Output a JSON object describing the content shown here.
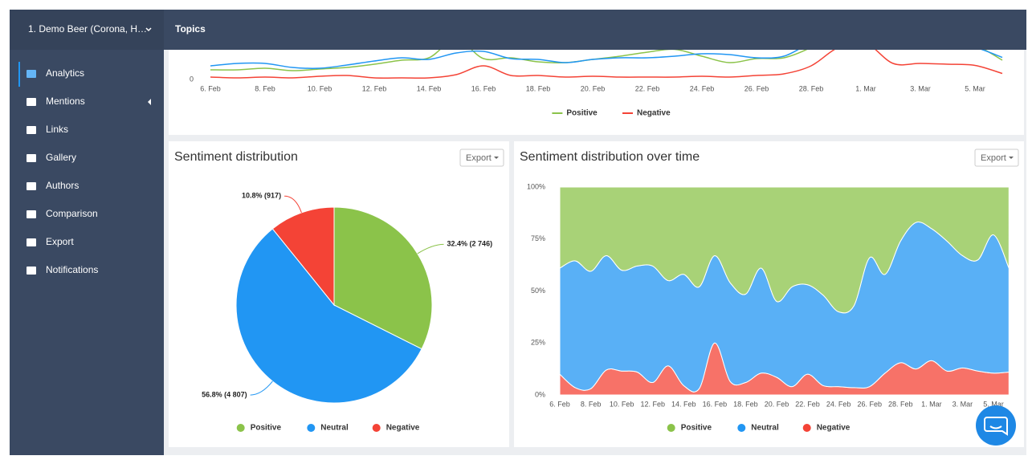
{
  "sidebar": {
    "project": "1. Demo Beer (Corona, H…",
    "menu": [
      "Analytics",
      "Mentions",
      "Links",
      "Gallery",
      "Authors",
      "Comparison",
      "Export",
      "Notifications"
    ]
  },
  "header": {
    "title": "Topics"
  },
  "chart_data": [
    {
      "type": "line",
      "categories": [
        "6. Feb",
        null,
        "8. Feb",
        null,
        "10. Feb",
        null,
        "12. Feb",
        null,
        "14. Feb",
        null,
        "16. Feb",
        null,
        "18. Feb",
        null,
        "20. Feb",
        null,
        "22. Feb",
        null,
        "24. Feb",
        null,
        "26. Feb",
        null,
        "28. Feb",
        null,
        "1. Mar",
        null,
        "3. Mar",
        null,
        "5. Mar",
        null
      ],
      "series": [
        {
          "name": "Positive",
          "color": "#8bc34a",
          "values": [
            4.8,
            4.8,
            5.6,
            4.4,
            5.2,
            6,
            7.6,
            9.6,
            10.8,
            20,
            10.4,
            10.8,
            8.8,
            8.4,
            10,
            11.6,
            13.6,
            15,
            11.6,
            8.4,
            10.4,
            10.8,
            16,
            24,
            26,
            22,
            20,
            18,
            17,
            9.6
          ]
        },
        {
          "name": null,
          "color": "#2196f3",
          "values": [
            6.8,
            8,
            8,
            6,
            5.6,
            7.2,
            9.2,
            10.8,
            10,
            13.2,
            14,
            10.4,
            10,
            8.4,
            10,
            10.8,
            10.8,
            11.6,
            12.8,
            12.4,
            10.8,
            11.6,
            18,
            20,
            22,
            20,
            19,
            18,
            16,
            11
          ]
        },
        {
          "name": "Negative",
          "color": "#f44336",
          "values": [
            1.2,
            0.8,
            1.2,
            0.8,
            1.6,
            2,
            0.8,
            0.8,
            0.8,
            2.4,
            6.8,
            2,
            2,
            1.2,
            1.6,
            1.2,
            1.2,
            1.2,
            1.6,
            1.2,
            2,
            2.8,
            6.8,
            16,
            18,
            8,
            8,
            7.6,
            7,
            3
          ]
        }
      ],
      "ylim": [
        0,
        100
      ],
      "yticks": [
        0
      ],
      "legend": "bottom"
    },
    {
      "type": "pie",
      "title": "Sentiment distribution",
      "button": "Export",
      "categories": [
        "Positive",
        "Neutral",
        "Negative"
      ],
      "values": [
        32.4,
        56.8,
        10.8
      ],
      "value_labels": [
        "32.4% (2 746)",
        "56.8% (4 807)",
        "10.8% (917)"
      ],
      "colors": [
        "#8bc34a",
        "#2196f3",
        "#f44336"
      ],
      "legend": "bottom"
    },
    {
      "type": "area",
      "stacked": true,
      "title": "Sentiment distribution over time",
      "button": "Export",
      "categories": [
        "6. Feb",
        null,
        "8. Feb",
        null,
        "10. Feb",
        null,
        "12. Feb",
        null,
        "14. Feb",
        null,
        "16. Feb",
        null,
        "18. Feb",
        null,
        "20. Feb",
        null,
        "22. Feb",
        null,
        "24. Feb",
        null,
        "26. Feb",
        null,
        "28. Feb",
        null,
        "1. Mar",
        null,
        "3. Mar",
        null,
        "5. Mar",
        null
      ],
      "series": [
        {
          "name": "Positive",
          "color": "#8bc34a",
          "values": [
            39,
            35.5,
            40.5,
            33,
            40,
            38,
            38,
            45,
            42,
            48,
            33,
            46,
            51.5,
            39,
            55,
            48,
            47,
            52,
            60,
            57,
            34,
            42,
            26,
            17,
            20,
            26,
            33,
            35,
            23,
            39
          ]
        },
        {
          "name": "Neutral",
          "color": "#2196f3",
          "values": [
            51,
            61,
            56.5,
            55,
            48.5,
            51,
            56,
            41,
            53.5,
            49,
            42,
            47.5,
            42.5,
            50.5,
            36.5,
            48,
            43,
            43.5,
            36,
            39.5,
            62,
            47.5,
            58.5,
            70.5,
            63.5,
            62.5,
            54,
            53.5,
            66.5,
            50
          ]
        },
        {
          "name": "Negative",
          "color": "#f44336",
          "values": [
            10,
            3.5,
            3,
            12,
            11.5,
            11,
            6,
            14,
            4.5,
            3,
            25,
            6.5,
            6,
            10.5,
            8.5,
            4,
            10,
            4.5,
            4,
            3.5,
            4,
            10.5,
            15.5,
            12.5,
            16.5,
            11.5,
            13,
            11.5,
            10.5,
            11
          ]
        }
      ],
      "ylim": [
        0,
        100
      ],
      "yticks": [
        {
          "value": 0,
          "label": "0%"
        },
        {
          "value": 25,
          "label": "25%"
        },
        {
          "value": 50,
          "label": "50%"
        },
        {
          "value": 75,
          "label": "75%"
        },
        {
          "value": 100,
          "label": "100%"
        }
      ],
      "legend": "bottom"
    }
  ]
}
